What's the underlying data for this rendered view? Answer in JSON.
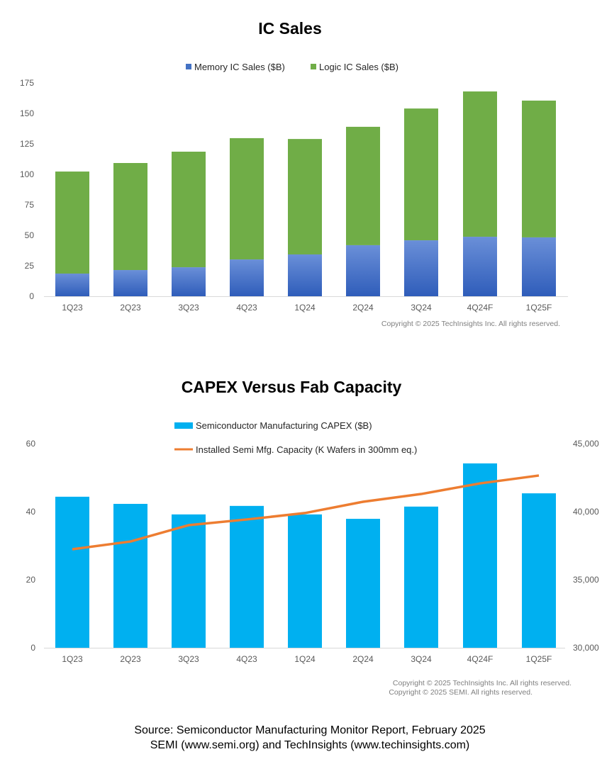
{
  "chart_data": [
    {
      "type": "bar",
      "stacked": true,
      "title": "IC Sales",
      "categories": [
        "1Q23",
        "2Q23",
        "3Q23",
        "4Q23",
        "1Q24",
        "2Q24",
        "3Q24",
        "4Q24F",
        "1Q25F"
      ],
      "series": [
        {
          "name": "Memory IC Sales ($B)",
          "color": "#4472C4",
          "values": [
            18.6,
            21.5,
            23.8,
            30.2,
            34.3,
            41.9,
            45.9,
            48.8,
            48.3
          ]
        },
        {
          "name": "Logic IC Sales ($B)",
          "color": "#70AD47",
          "values": [
            83.7,
            87.8,
            94.8,
            99.5,
            94.7,
            97.1,
            108.1,
            119.2,
            112.2
          ]
        }
      ],
      "ylim": [
        0,
        175
      ],
      "yticks": [
        "0",
        "25",
        "50",
        "75",
        "100",
        "125",
        "150",
        "175"
      ],
      "legend": "top",
      "grid": false,
      "copyright": "Copyright © 2025 TechInsights Inc.  All rights reserved."
    },
    {
      "type": "bar+line",
      "title": "CAPEX Versus Fab Capacity",
      "categories": [
        "1Q23",
        "2Q23",
        "3Q23",
        "4Q23",
        "1Q24",
        "2Q24",
        "3Q24",
        "4Q24F",
        "1Q25F"
      ],
      "series": [
        {
          "name": "Semiconductor Manufacturing CAPEX ($B)",
          "type": "bar",
          "axis": "left",
          "color": "#00B0F0",
          "values": [
            44.4,
            42.3,
            39.2,
            41.7,
            39.2,
            37.9,
            41.5,
            54.2,
            45.4
          ]
        },
        {
          "name": "Installed Semi Mfg. Capacity (K Wafers in 300mm eq.)",
          "type": "line",
          "axis": "right",
          "color": "#ED7D31",
          "values": [
            37240,
            37810,
            39010,
            39430,
            39900,
            40730,
            41300,
            42080,
            42660
          ]
        }
      ],
      "ylim": [
        0,
        60
      ],
      "yticks": [
        "0",
        "20",
        "40",
        "60"
      ],
      "y2lim": [
        30000,
        45000
      ],
      "y2ticks": [
        "30,000",
        "35,000",
        "40,000",
        "45,000"
      ],
      "legend": "top",
      "grid": false,
      "copyright": [
        "Copyright © 2025 TechInsights Inc.  All rights reserved.",
        "Copyright © 2025 SEMI.  All rights reserved."
      ]
    }
  ],
  "source": [
    "Source: Semiconductor Manufacturing Monitor Report, February 2025",
    "SEMI (www.semi.org) and TechInsights (www.techinsights.com)"
  ]
}
